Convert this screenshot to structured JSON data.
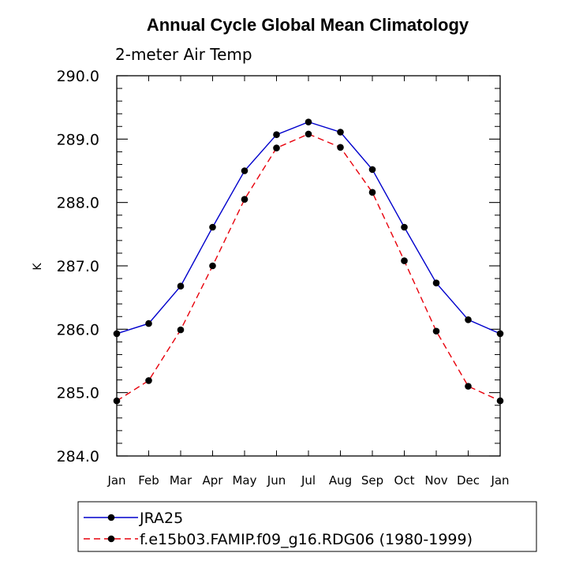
{
  "chart_data": {
    "type": "line",
    "title": "Annual Cycle Global Mean Climatology",
    "subtitle": "2-meter Air Temp",
    "ylabel": "K",
    "xlabel": "",
    "categories": [
      "Jan",
      "Feb",
      "Mar",
      "Apr",
      "May",
      "Jun",
      "Jul",
      "Aug",
      "Sep",
      "Oct",
      "Nov",
      "Dec",
      "Jan"
    ],
    "ylim": [
      284.0,
      290.0
    ],
    "yticks": [
      "284.0",
      "285.0",
      "286.0",
      "287.0",
      "288.0",
      "289.0",
      "290.0"
    ],
    "grid": false,
    "legend_placement": "bottom",
    "series": [
      {
        "name": "JRA25",
        "color": "#0000cc",
        "dash": "solid",
        "values": [
          285.93,
          286.09,
          286.68,
          287.61,
          288.5,
          289.07,
          289.27,
          289.11,
          288.52,
          287.61,
          286.73,
          286.15,
          285.93
        ]
      },
      {
        "name": "f.e15b03.FAMIP.f09_g16.RDG06 (1980-1999)",
        "color": "#e8000b",
        "dash": "dashed",
        "values": [
          284.87,
          285.19,
          285.99,
          287.0,
          288.05,
          288.86,
          289.08,
          288.87,
          288.16,
          287.08,
          285.97,
          285.1,
          284.87
        ]
      }
    ]
  }
}
